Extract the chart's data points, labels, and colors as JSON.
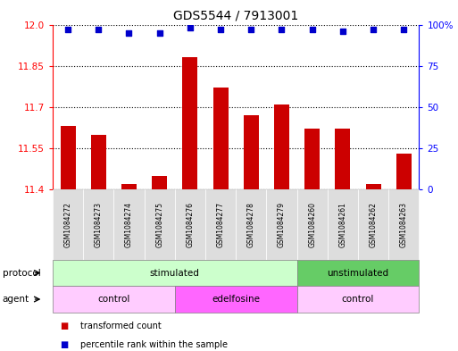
{
  "title": "GDS5544 / 7913001",
  "samples": [
    "GSM1084272",
    "GSM1084273",
    "GSM1084274",
    "GSM1084275",
    "GSM1084276",
    "GSM1084277",
    "GSM1084278",
    "GSM1084279",
    "GSM1084260",
    "GSM1084261",
    "GSM1084262",
    "GSM1084263"
  ],
  "bar_values": [
    11.63,
    11.6,
    11.42,
    11.45,
    11.88,
    11.77,
    11.67,
    11.71,
    11.62,
    11.62,
    11.42,
    11.53
  ],
  "percentile_values": [
    97,
    97,
    95,
    95,
    98,
    97,
    97,
    97,
    97,
    96,
    97,
    97
  ],
  "bar_color": "#cc0000",
  "dot_color": "#0000cc",
  "ylim_left": [
    11.4,
    12.0
  ],
  "ylim_right": [
    0,
    100
  ],
  "yticks_left": [
    11.4,
    11.55,
    11.7,
    11.85,
    12.0
  ],
  "yticks_right": [
    0,
    25,
    50,
    75,
    100
  ],
  "right_tick_labels": [
    "0",
    "25",
    "50",
    "75",
    "100%"
  ],
  "protocol_groups": [
    {
      "label": "stimulated",
      "start": 0,
      "end": 8,
      "color": "#ccffcc"
    },
    {
      "label": "unstimulated",
      "start": 8,
      "end": 12,
      "color": "#66cc66"
    }
  ],
  "agent_groups": [
    {
      "label": "control",
      "start": 0,
      "end": 4,
      "color": "#ffccff"
    },
    {
      "label": "edelfosine",
      "start": 4,
      "end": 8,
      "color": "#ff66ff"
    },
    {
      "label": "control",
      "start": 8,
      "end": 12,
      "color": "#ffccff"
    }
  ],
  "legend_items": [
    {
      "label": "transformed count",
      "color": "#cc0000"
    },
    {
      "label": "percentile rank within the sample",
      "color": "#0000cc"
    }
  ],
  "protocol_label": "protocol",
  "agent_label": "agent",
  "background_color": "#ffffff",
  "sample_bg_color": "#dddddd"
}
